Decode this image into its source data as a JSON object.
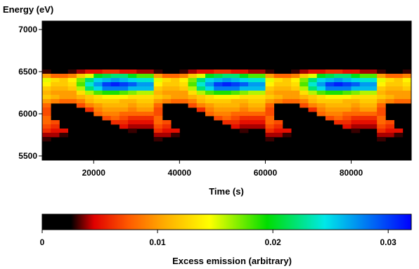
{
  "chart_data": [
    {
      "type": "heatmap",
      "title": "",
      "xlabel": "Time (s)",
      "ylabel": "Energy (eV)",
      "xlim": [
        8000,
        94000
      ],
      "ylim": [
        5450,
        7100
      ],
      "x_ticks": [
        20000,
        40000,
        60000,
        80000
      ],
      "y_ticks": [
        5500,
        6000,
        6500,
        7000
      ],
      "grid": false,
      "x_cells": 43,
      "period_s": 26000,
      "y_rows": [
        {
          "energy": 6550,
          "profile": [
            0.0,
            0.0,
            0.0,
            0.0,
            0.0,
            0.0,
            0.0,
            0.0,
            0.0,
            0.0,
            0.0,
            0.0,
            0.0
          ]
        },
        {
          "energy": 6500,
          "profile": [
            0.004,
            0.003,
            0.002,
            0.002,
            0.003,
            0.004,
            0.005,
            0.005,
            0.006,
            0.006,
            0.005,
            0.005,
            0.004
          ]
        },
        {
          "energy": 6450,
          "profile": [
            0.018,
            0.01,
            0.008,
            0.008,
            0.009,
            0.012,
            0.015,
            0.02,
            0.021,
            0.022,
            0.022,
            0.02,
            0.018
          ]
        },
        {
          "energy": 6400,
          "profile": [
            0.024,
            0.015,
            0.013,
            0.012,
            0.014,
            0.017,
            0.022,
            0.025,
            0.026,
            0.027,
            0.026,
            0.025,
            0.024
          ]
        },
        {
          "energy": 6350,
          "profile": [
            0.027,
            0.014,
            0.012,
            0.012,
            0.013,
            0.018,
            0.024,
            0.027,
            0.03,
            0.031,
            0.03,
            0.029,
            0.027
          ]
        },
        {
          "energy": 6300,
          "profile": [
            0.026,
            0.012,
            0.011,
            0.011,
            0.012,
            0.016,
            0.022,
            0.025,
            0.028,
            0.028,
            0.028,
            0.026,
            0.026
          ]
        },
        {
          "energy": 6250,
          "profile": [
            0.016,
            0.011,
            0.01,
            0.01,
            0.01,
            0.013,
            0.016,
            0.018,
            0.019,
            0.019,
            0.018,
            0.017,
            0.016
          ]
        },
        {
          "energy": 6200,
          "profile": [
            0.013,
            0.012,
            0.011,
            0.01,
            0.01,
            0.011,
            0.012,
            0.013,
            0.014,
            0.014,
            0.014,
            0.013,
            0.013
          ]
        },
        {
          "energy": 6150,
          "profile": [
            0.012,
            0.01,
            0.009,
            0.008,
            0.008,
            0.009,
            0.011,
            0.012,
            0.012,
            0.012,
            0.011,
            0.011,
            0.012
          ]
        },
        {
          "energy": 6100,
          "profile": [
            0.011,
            0.008,
            0.0,
            0.0,
            0.0,
            0.007,
            0.009,
            0.01,
            0.011,
            0.011,
            0.011,
            0.01,
            0.011
          ]
        },
        {
          "energy": 6050,
          "profile": [
            0.01,
            0.007,
            0.0,
            0.0,
            0.0,
            0.0,
            0.006,
            0.009,
            0.01,
            0.01,
            0.01,
            0.009,
            0.01
          ]
        },
        {
          "energy": 6000,
          "profile": [
            0.008,
            0.007,
            0.0,
            0.0,
            0.0,
            0.0,
            0.0,
            0.008,
            0.009,
            0.009,
            0.008,
            0.008,
            0.008
          ]
        },
        {
          "energy": 5950,
          "profile": [
            0.006,
            0.008,
            0.0,
            0.0,
            0.0,
            0.0,
            0.0,
            0.0,
            0.007,
            0.008,
            0.007,
            0.006,
            0.006
          ]
        },
        {
          "energy": 5900,
          "profile": [
            0.005,
            0.008,
            0.007,
            0.0,
            0.0,
            0.0,
            0.0,
            0.0,
            0.0,
            0.006,
            0.006,
            0.005,
            0.005
          ]
        },
        {
          "energy": 5850,
          "profile": [
            0.004,
            0.007,
            0.006,
            0.0,
            0.0,
            0.0,
            0.0,
            0.0,
            0.0,
            0.0,
            0.005,
            0.004,
            0.004
          ]
        },
        {
          "energy": 5800,
          "profile": [
            0.0,
            0.006,
            0.005,
            0.005,
            0.0,
            0.0,
            0.0,
            0.0,
            0.0,
            0.0,
            0.0,
            0.003,
            0.0
          ]
        },
        {
          "energy": 5750,
          "profile": [
            0.0,
            0.004,
            0.004,
            0.003,
            0.0,
            0.0,
            0.0,
            0.0,
            0.0,
            0.0,
            0.0,
            0.0,
            0.0
          ]
        },
        {
          "energy": 5700,
          "profile": [
            0.0,
            0.003,
            0.002,
            0.002,
            0.0,
            0.0,
            0.0,
            0.0,
            0.0,
            0.0,
            0.0,
            0.0,
            0.0
          ]
        },
        {
          "energy": 5650,
          "profile": [
            0.0,
            0.002,
            0.0,
            0.0,
            0.0,
            0.0,
            0.0,
            0.0,
            0.0,
            0.0,
            0.0,
            0.0,
            0.0
          ]
        }
      ]
    },
    {
      "type": "colorbar",
      "label": "Excess emission (arbitrary)",
      "range": [
        0,
        0.032
      ],
      "ticks": [
        "0",
        "0.01",
        "0.02",
        "0.03"
      ],
      "tick_values": [
        0,
        0.01,
        0.02,
        0.03
      ],
      "colormap": [
        {
          "v": 0.0,
          "c": "#000000"
        },
        {
          "v": 0.0025,
          "c": "#000000"
        },
        {
          "v": 0.0045,
          "c": "#e00000"
        },
        {
          "v": 0.0075,
          "c": "#ff5a00"
        },
        {
          "v": 0.0105,
          "c": "#ffaa00"
        },
        {
          "v": 0.0145,
          "c": "#ffff00"
        },
        {
          "v": 0.0195,
          "c": "#00dd00"
        },
        {
          "v": 0.0245,
          "c": "#00e8e8"
        },
        {
          "v": 0.032,
          "c": "#0000ff"
        }
      ]
    }
  ]
}
